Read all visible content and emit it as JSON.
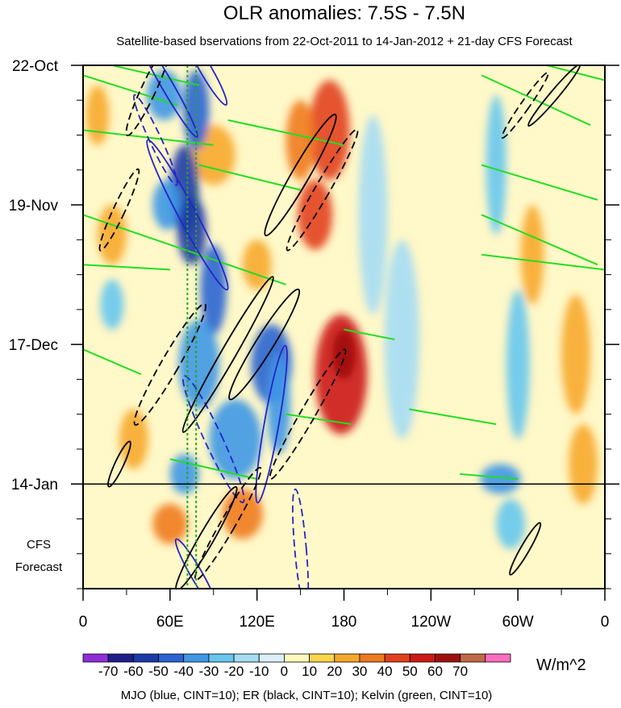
{
  "chart_data": {
    "type": "heatmap",
    "title": "OLR anomalies: 7.5S - 7.5N",
    "subtitle": "Satellite-based bservations from 22-Oct-2011 to 14-Jan-2012 + 21-day CFS Forecast",
    "forecast_label": [
      "CFS",
      "Forecast"
    ],
    "x_ticks": [
      {
        "label": "0",
        "lon": 0
      },
      {
        "label": "60E",
        "lon": 60
      },
      {
        "label": "120E",
        "lon": 120
      },
      {
        "label": "180",
        "lon": 180
      },
      {
        "label": "120W",
        "lon": 240
      },
      {
        "label": "60W",
        "lon": 300
      },
      {
        "label": "0",
        "lon": 360
      }
    ],
    "xlim": [
      0,
      360
    ],
    "y_ticks": [
      {
        "label": "22-Oct",
        "day": 0
      },
      {
        "label": "19-Nov",
        "day": 28
      },
      {
        "label": "17-Dec",
        "day": 56
      },
      {
        "label": "14-Jan",
        "day": 84
      }
    ],
    "ylim_days": [
      0,
      105
    ],
    "forecast_start_day": 84,
    "colorbar": {
      "unit": "W/m^2",
      "labels": [
        "-70",
        "-60",
        "-50",
        "-40",
        "-30",
        "-20",
        "-10",
        "0",
        "10",
        "20",
        "30",
        "40",
        "50",
        "60",
        "70"
      ],
      "colors": [
        "#8e2ed8",
        "#1e1e8c",
        "#1c3aa8",
        "#2a64d2",
        "#3f97e6",
        "#66c6ee",
        "#a5dcf4",
        "#dbf0f8",
        "#fff8bd",
        "#fbd64a",
        "#f7a82b",
        "#f07a1e",
        "#e2401c",
        "#cc1a16",
        "#9e1010",
        "#c06a4a",
        "#ff6ec0"
      ]
    },
    "footer": "MJO (blue, CINT=10); ER (black, CINT=10); Kelvin (green, CINT=10)",
    "features": {
      "convective_blobs": [
        {
          "lon": 56,
          "day": 6,
          "rx": 12,
          "ry": 5,
          "level": 3
        },
        {
          "lon": 78,
          "day": 9,
          "rx": 9,
          "ry": 8,
          "level": 4
        },
        {
          "lon": 70,
          "day": 25,
          "rx": 10,
          "ry": 9,
          "level": 5
        },
        {
          "lon": 58,
          "day": 28,
          "rx": 10,
          "ry": 5,
          "level": 3
        },
        {
          "lon": 75,
          "day": 33,
          "rx": 10,
          "ry": 7,
          "level": 5
        },
        {
          "lon": 90,
          "day": 45,
          "rx": 9,
          "ry": 9,
          "level": 4
        },
        {
          "lon": 130,
          "day": 60,
          "rx": 14,
          "ry": 8,
          "level": 4
        },
        {
          "lon": 80,
          "day": 60,
          "rx": 14,
          "ry": 9,
          "level": 3
        },
        {
          "lon": 105,
          "day": 75,
          "rx": 18,
          "ry": 8,
          "level": 3
        },
        {
          "lon": 135,
          "day": 68,
          "rx": 8,
          "ry": 10,
          "level": 3
        },
        {
          "lon": 70,
          "day": 82,
          "rx": 10,
          "ry": 4,
          "level": 3
        },
        {
          "lon": 20,
          "day": 48,
          "rx": 8,
          "ry": 5,
          "level": 2
        },
        {
          "lon": 288,
          "day": 83,
          "rx": 14,
          "ry": 3,
          "level": 3
        },
        {
          "lon": 295,
          "day": 92,
          "rx": 10,
          "ry": 5,
          "level": 2
        },
        {
          "lon": 285,
          "day": 20,
          "rx": 7,
          "ry": 14,
          "level": 2
        },
        {
          "lon": 300,
          "day": 60,
          "rx": 8,
          "ry": 15,
          "level": 2
        },
        {
          "lon": 220,
          "day": 55,
          "rx": 12,
          "ry": 20,
          "level": 1
        },
        {
          "lon": 200,
          "day": 30,
          "rx": 10,
          "ry": 20,
          "level": 1
        }
      ],
      "dry_blobs": [
        {
          "lon": 170,
          "day": 13,
          "rx": 14,
          "ry": 10,
          "level": 4
        },
        {
          "lon": 90,
          "day": 18,
          "rx": 15,
          "ry": 6,
          "level": 2
        },
        {
          "lon": 160,
          "day": 30,
          "rx": 12,
          "ry": 7,
          "level": 4
        },
        {
          "lon": 178,
          "day": 62,
          "rx": 18,
          "ry": 12,
          "level": 5
        },
        {
          "lon": 180,
          "day": 58,
          "rx": 8,
          "ry": 5,
          "level": 6
        },
        {
          "lon": 150,
          "day": 15,
          "rx": 10,
          "ry": 8,
          "level": 3
        },
        {
          "lon": 20,
          "day": 34,
          "rx": 10,
          "ry": 6,
          "level": 2
        },
        {
          "lon": 35,
          "day": 75,
          "rx": 10,
          "ry": 6,
          "level": 2
        },
        {
          "lon": 60,
          "day": 92,
          "rx": 12,
          "ry": 4,
          "level": 3
        },
        {
          "lon": 110,
          "day": 90,
          "rx": 14,
          "ry": 5,
          "level": 3
        },
        {
          "lon": 340,
          "day": 58,
          "rx": 10,
          "ry": 12,
          "level": 2
        },
        {
          "lon": 345,
          "day": 80,
          "rx": 10,
          "ry": 8,
          "level": 2
        },
        {
          "lon": 310,
          "day": 38,
          "rx": 8,
          "ry": 10,
          "level": 2
        },
        {
          "lon": 10,
          "day": 10,
          "rx": 8,
          "ry": 6,
          "level": 2
        },
        {
          "lon": 120,
          "day": 40,
          "rx": 10,
          "ry": 5,
          "level": 2
        }
      ],
      "kelvin_bands": [
        {
          "lon0": 0,
          "day0": 2,
          "lon1": 65,
          "day1": 8
        },
        {
          "lon0": 20,
          "day0": 0,
          "lon1": 80,
          "day1": 4
        },
        {
          "lon0": 0,
          "day0": 13,
          "lon1": 90,
          "day1": 16
        },
        {
          "lon0": 100,
          "day0": 11,
          "lon1": 180,
          "day1": 16
        },
        {
          "lon0": 80,
          "day0": 20,
          "lon1": 150,
          "day1": 25
        },
        {
          "lon0": 0,
          "day0": 30,
          "lon1": 140,
          "day1": 44
        },
        {
          "lon0": 0,
          "day0": 40,
          "lon1": 60,
          "day1": 41
        },
        {
          "lon0": 0,
          "day0": 57,
          "lon1": 40,
          "day1": 62
        },
        {
          "lon0": 140,
          "day0": 70,
          "lon1": 185,
          "day1": 72
        },
        {
          "lon0": 225,
          "day0": 69,
          "lon1": 285,
          "day1": 72
        },
        {
          "lon0": 60,
          "day0": 79,
          "lon1": 120,
          "day1": 83
        },
        {
          "lon0": 275,
          "day0": 2,
          "lon1": 350,
          "day1": 12
        },
        {
          "lon0": 320,
          "day0": 0,
          "lon1": 360,
          "day1": 3
        },
        {
          "lon0": 275,
          "day0": 20,
          "lon1": 355,
          "day1": 27
        },
        {
          "lon0": 275,
          "day0": 30,
          "lon1": 355,
          "day1": 40
        },
        {
          "lon0": 275,
          "day0": 38,
          "lon1": 360,
          "day1": 41
        },
        {
          "lon0": 180,
          "day0": 53,
          "lon1": 215,
          "day1": 55
        },
        {
          "lon0": 260,
          "day0": 82,
          "lon1": 300,
          "day1": 83
        }
      ],
      "mjo_contours": [
        {
          "lon": 58,
          "day": 4,
          "rx": 4,
          "ry": 12,
          "rot": -30,
          "dashed": false
        },
        {
          "lon": 85,
          "day": 1,
          "rx": 4,
          "ry": 8,
          "rot": -30,
          "dashed": false
        },
        {
          "lon": 72,
          "day": 30,
          "rx": 6,
          "ry": 17,
          "rot": -28,
          "dashed": false
        },
        {
          "lon": 130,
          "day": 72,
          "rx": 5,
          "ry": 16,
          "rot": 10,
          "dashed": false
        },
        {
          "lon": 78,
          "day": 102,
          "rx": 4,
          "ry": 8,
          "rot": -30,
          "dashed": false
        },
        {
          "lon": 50,
          "day": 15,
          "rx": 4,
          "ry": 10,
          "rot": -25,
          "dashed": true
        },
        {
          "lon": 90,
          "day": 75,
          "rx": 6,
          "ry": 14,
          "rot": -25,
          "dashed": true
        },
        {
          "lon": 150,
          "day": 97,
          "rx": 4,
          "ry": 12,
          "rot": -5,
          "dashed": true
        }
      ],
      "er_contours": [
        {
          "lon": 45,
          "day": 5,
          "rx": 5,
          "ry": 10,
          "rot": 25,
          "dashed": true
        },
        {
          "lon": 150,
          "day": 22,
          "rx": 6,
          "ry": 14,
          "rot": 30,
          "dashed": false
        },
        {
          "lon": 165,
          "day": 25,
          "rx": 5,
          "ry": 14,
          "rot": 30,
          "dashed": true
        },
        {
          "lon": 25,
          "day": 29,
          "rx": 4,
          "ry": 9,
          "rot": 25,
          "dashed": true
        },
        {
          "lon": 125,
          "day": 56,
          "rx": 6,
          "ry": 13,
          "rot": 32,
          "dashed": false
        },
        {
          "lon": 60,
          "day": 60,
          "rx": 6,
          "ry": 14,
          "rot": 30,
          "dashed": true
        },
        {
          "lon": 155,
          "day": 70,
          "rx": 5,
          "ry": 15,
          "rot": 30,
          "dashed": true
        },
        {
          "lon": 100,
          "day": 58,
          "rx": 5,
          "ry": 18,
          "rot": 30,
          "dashed": false
        },
        {
          "lon": 25,
          "day": 80,
          "rx": 3,
          "ry": 5,
          "rot": 25,
          "dashed": false
        },
        {
          "lon": 85,
          "day": 95,
          "rx": 5,
          "ry": 12,
          "rot": 30,
          "dashed": false
        },
        {
          "lon": 100,
          "day": 92,
          "rx": 5,
          "ry": 13,
          "rot": 30,
          "dashed": true
        },
        {
          "lon": 325,
          "day": 6,
          "rx": 3,
          "ry": 8,
          "rot": 40,
          "dashed": false
        },
        {
          "lon": 305,
          "day": 8,
          "rx": 3,
          "ry": 8,
          "rot": 35,
          "dashed": true
        },
        {
          "lon": 305,
          "day": 97,
          "rx": 3,
          "ry": 6,
          "rot": 30,
          "dashed": false
        }
      ],
      "forecast_lines_lon": [
        72,
        78
      ]
    }
  }
}
